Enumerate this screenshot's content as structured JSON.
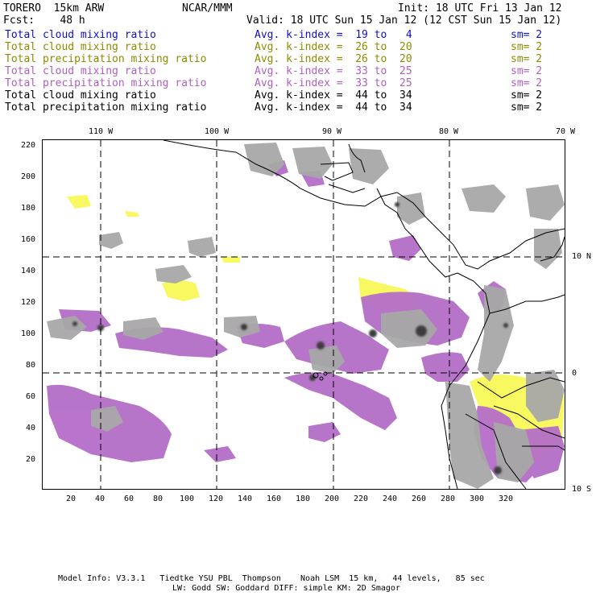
{
  "header": {
    "model_title": "TORERO  15km ARW",
    "org": "NCAR/MMM",
    "init": "Init: 18 UTC Fri 13 Jan 12",
    "fcst": "Fcst:    48 h",
    "valid": "Valid: 18 UTC Sun 15 Jan 12 (12 CST Sun 15 Jan 12)"
  },
  "colors": {
    "blue": "#1010c8",
    "olive": "#8c8c00",
    "purple": "#b060c0",
    "black": "#000000",
    "cloud_gray": "#a8a8a8",
    "precip_purple": "#b46ec8",
    "yellow": "#f8f860",
    "cyan": "#c8f0f8"
  },
  "legend": [
    {
      "field": "Total cloud mixing ratio",
      "stat": "Avg. k-index =  19 to   4",
      "sm": "sm= 2",
      "color": "#1010c8"
    },
    {
      "field": "Total cloud mixing ratio",
      "stat": "Avg. k-index =  26 to  20",
      "sm": "sm= 2",
      "color": "#8c8c00"
    },
    {
      "field": "Total precipitation mixing ratio",
      "stat": "Avg. k-index =  26 to  20",
      "sm": "sm= 2",
      "color": "#8c8c00"
    },
    {
      "field": "Total cloud mixing ratio",
      "stat": "Avg. k-index =  33 to  25",
      "sm": "sm= 2",
      "color": "#b060c0"
    },
    {
      "field": "Total precipitation mixing ratio",
      "stat": "Avg. k-index =  33 to  25",
      "sm": "sm= 2",
      "color": "#b060c0"
    },
    {
      "field": "Total cloud mixing ratio",
      "stat": "Avg. k-index =  44 to  34",
      "sm": "sm= 2",
      "color": "#000000"
    },
    {
      "field": "Total precipitation mixing ratio",
      "stat": "Avg. k-index =  44 to  34",
      "sm": "sm= 2",
      "color": "#000000"
    }
  ],
  "map": {
    "lon_labels": [
      "110 W",
      "100 W",
      "90 W",
      "80 W",
      "70 W"
    ],
    "lat_labels": [
      "10 N",
      "0",
      "10 S"
    ],
    "x_ticks": [
      "20",
      "40",
      "60",
      "80",
      "100",
      "120",
      "140",
      "160",
      "180",
      "200",
      "220",
      "240",
      "260",
      "280",
      "300",
      "320"
    ],
    "y_ticks": [
      "220",
      "200",
      "180",
      "160",
      "140",
      "120",
      "100",
      "80",
      "60",
      "40",
      "20"
    ]
  },
  "footer": {
    "line1": "Model Info: V3.3.1   Tiedtke YSU PBL  Thompson    Noah LSM  15 km,   44 levels,   85 sec",
    "line2": "LW: Godd SW: Goddard DIFF: simple KM: 2D Smagor"
  }
}
